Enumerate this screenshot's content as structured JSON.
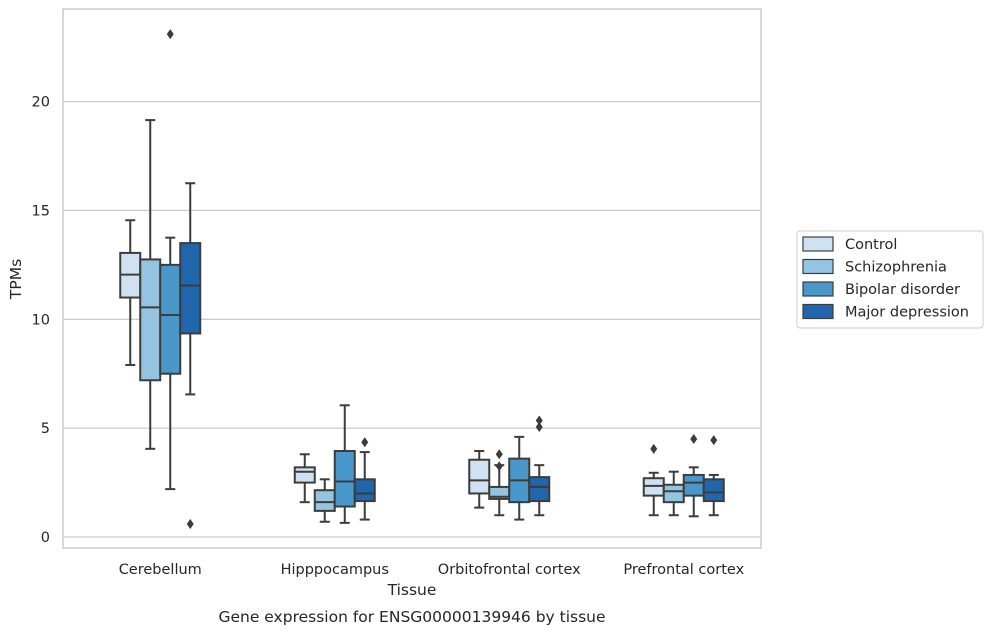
{
  "chart_data": {
    "type": "box",
    "caption": "Gene expression for ENSG00000139946 by tissue",
    "xlabel": "Tissue",
    "ylabel": "TPMs",
    "ylim": [
      -0.5,
      24.3
    ],
    "yticks": [
      0,
      5,
      10,
      15,
      20
    ],
    "grid": true,
    "legend_placement": "right",
    "categories": [
      "Cerebellum",
      "Hipppocampus",
      "Orbitofrontal cortex",
      "Prefrontal cortex"
    ],
    "series": [
      {
        "name": "Control",
        "color": "#d0e1f2",
        "boxes": [
          {
            "whislo": 7.9,
            "q1": 11.0,
            "med": 12.05,
            "q3": 13.05,
            "whishi": 14.55,
            "fliers": []
          },
          {
            "whislo": 1.6,
            "q1": 2.5,
            "med": 3.0,
            "q3": 3.2,
            "whishi": 3.8,
            "fliers": []
          },
          {
            "whislo": 1.35,
            "q1": 2.0,
            "med": 2.6,
            "q3": 3.55,
            "whishi": 3.95,
            "fliers": []
          },
          {
            "whislo": 1.0,
            "q1": 1.9,
            "med": 2.35,
            "q3": 2.7,
            "whishi": 2.95,
            "fliers": [
              4.05
            ]
          }
        ]
      },
      {
        "name": "Schizophrenia",
        "color": "#94c4df",
        "boxes": [
          {
            "whislo": 4.05,
            "q1": 7.2,
            "med": 10.55,
            "q3": 12.75,
            "whishi": 19.15,
            "fliers": []
          },
          {
            "whislo": 0.7,
            "q1": 1.2,
            "med": 1.6,
            "q3": 2.15,
            "whishi": 2.65,
            "fliers": []
          },
          {
            "whislo": 1.0,
            "q1": 1.75,
            "med": 1.85,
            "q3": 2.3,
            "whishi": 3.3,
            "fliers": [
              3.25,
              3.8
            ]
          },
          {
            "whislo": 1.0,
            "q1": 1.6,
            "med": 2.1,
            "q3": 2.4,
            "whishi": 3.0,
            "fliers": []
          }
        ]
      },
      {
        "name": "Bipolar disorder",
        "color": "#4a98c9",
        "boxes": [
          {
            "whislo": 2.2,
            "q1": 7.5,
            "med": 10.2,
            "q3": 12.5,
            "whishi": 13.75,
            "fliers": [
              23.1
            ]
          },
          {
            "whislo": 0.65,
            "q1": 1.4,
            "med": 2.55,
            "q3": 3.95,
            "whishi": 6.05,
            "fliers": []
          },
          {
            "whislo": 0.8,
            "q1": 1.6,
            "med": 2.6,
            "q3": 3.6,
            "whishi": 4.6,
            "fliers": []
          },
          {
            "whislo": 0.95,
            "q1": 1.9,
            "med": 2.5,
            "q3": 2.85,
            "whishi": 3.2,
            "fliers": [
              4.5
            ]
          }
        ]
      },
      {
        "name": "Major depression",
        "color": "#2166ac",
        "boxes": [
          {
            "whislo": 6.55,
            "q1": 9.35,
            "med": 11.55,
            "q3": 13.5,
            "whishi": 16.25,
            "fliers": [
              0.6
            ]
          },
          {
            "whislo": 0.8,
            "q1": 1.65,
            "med": 2.0,
            "q3": 2.65,
            "whishi": 3.9,
            "fliers": [
              4.35
            ]
          },
          {
            "whislo": 1.0,
            "q1": 1.65,
            "med": 2.3,
            "q3": 2.75,
            "whishi": 3.3,
            "fliers": [
              5.05,
              5.35
            ]
          },
          {
            "whislo": 1.0,
            "q1": 1.65,
            "med": 2.05,
            "q3": 2.65,
            "whishi": 2.85,
            "fliers": [
              4.45
            ]
          }
        ]
      }
    ]
  }
}
